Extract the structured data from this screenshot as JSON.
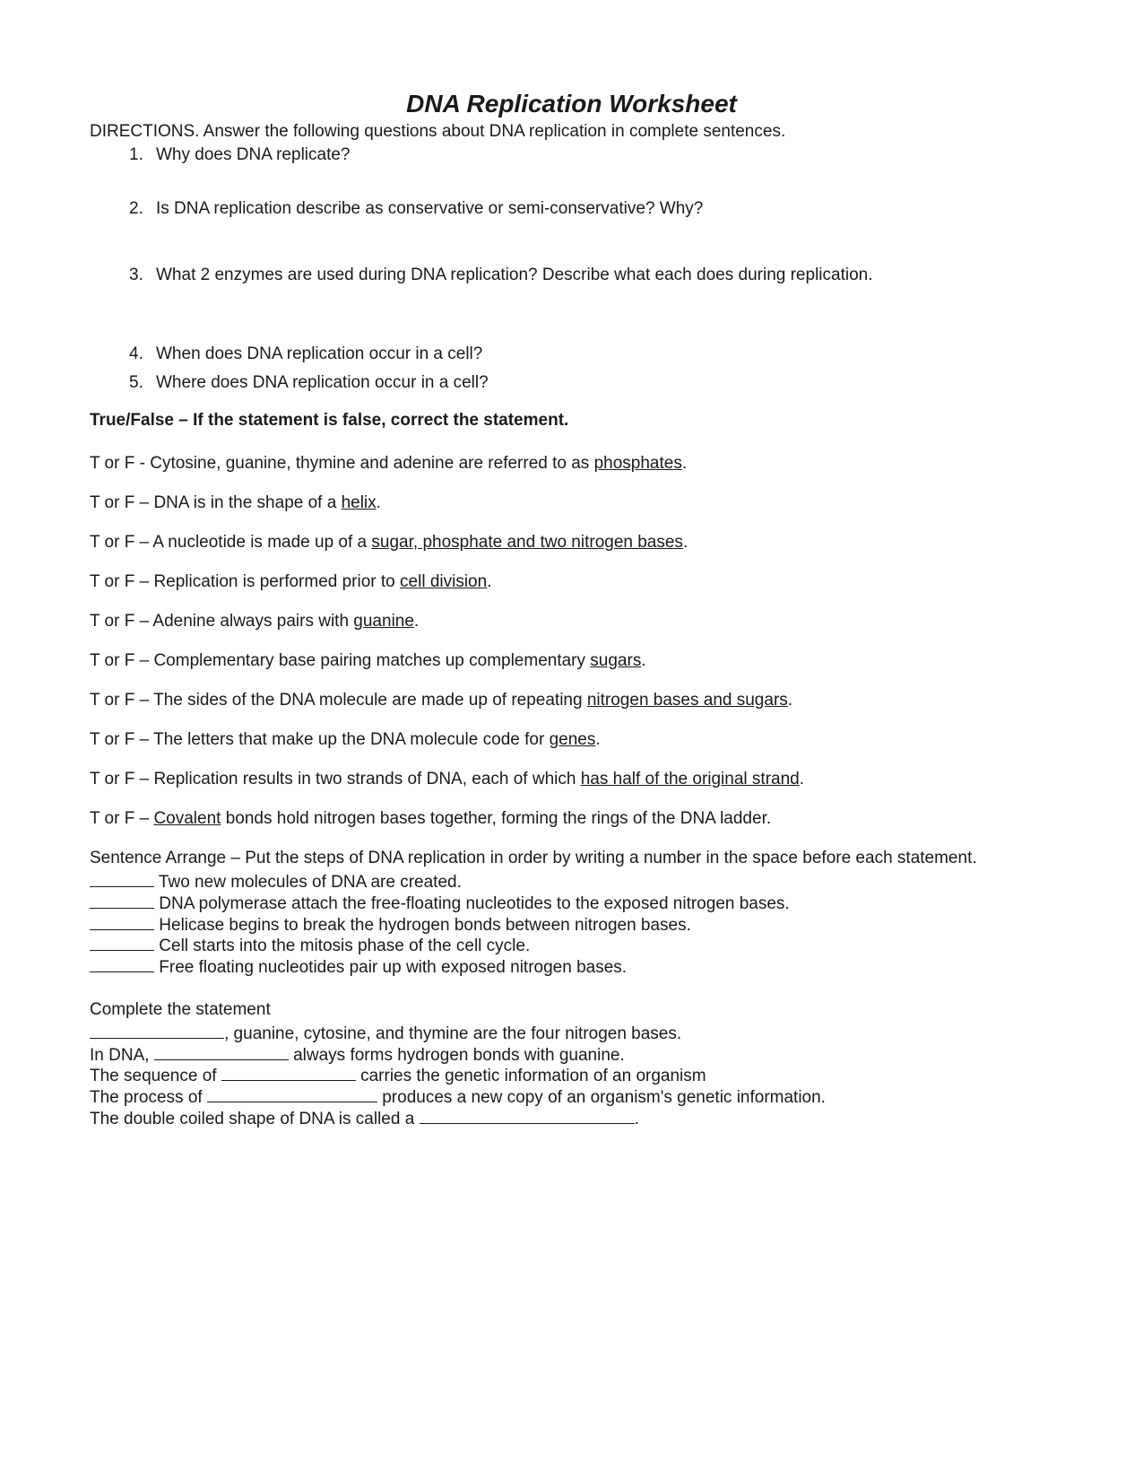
{
  "title": "DNA Replication Worksheet",
  "directions": "DIRECTIONS. Answer the following questions about DNA replication in complete sentences.",
  "questions": [
    {
      "num": "1.",
      "text": "Why does DNA replicate?"
    },
    {
      "num": "2.",
      "text": "Is DNA replication describe as conservative or semi-conservative? Why?"
    },
    {
      "num": "3.",
      "text": "What 2 enzymes are used during DNA replication? Describe what each does during replication."
    },
    {
      "num": "4.",
      "text": "When does DNA replication occur in a cell?"
    },
    {
      "num": "5.",
      "text": "Where does DNA replication occur in a cell?"
    }
  ],
  "tfHeading": "True/False – If the statement is false, correct the statement.",
  "tfPrefix": "T or  F",
  "tf": [
    {
      "sep": " - ",
      "pre": "Cytosine, guanine, thymine and adenine are referred to as ",
      "u": "phosphates",
      "post": "."
    },
    {
      "sep": " – ",
      "pre": "DNA is in the shape of a ",
      "u": "helix",
      "post": "."
    },
    {
      "sep": " – ",
      "pre": "A nucleotide is made up of a ",
      "u": "sugar, phosphate and two nitrogen bases",
      "post": "."
    },
    {
      "sep": " – ",
      "pre": "Replication is performed prior to ",
      "u": "cell division",
      "post": "."
    },
    {
      "sep": " – ",
      "pre": "Adenine always pairs with ",
      "u": "guanine",
      "post": "."
    },
    {
      "sep": " – ",
      "pre": "Complementary base pairing matches up complementary ",
      "u": "sugars",
      "post": "."
    },
    {
      "sep": " – ",
      "pre": "The sides of the DNA molecule are made up of repeating ",
      "u": "nitrogen bases and sugars",
      "post": "."
    },
    {
      "sep": " – ",
      "pre": "The letters that make up the DNA molecule code for ",
      "u": "genes",
      "post": "."
    },
    {
      "sep": " – ",
      "pre": "Replication results in two strands of DNA, each of which ",
      "u": "has half of the original strand",
      "post": "."
    },
    {
      "sep": " – ",
      "pre": "",
      "u": "Covalent",
      "post": " bonds hold nitrogen bases together, forming the rings of the DNA ladder."
    }
  ],
  "arrangeIntro": "Sentence Arrange – Put the steps of DNA replication in order by writing a number in the space before each statement.",
  "arrange": [
    "Two new molecules of DNA are created.",
    "DNA polymerase attach the free-floating nucleotides to the exposed nitrogen bases.",
    "Helicase begins to break the hydrogen bonds between nitrogen bases.",
    "Cell starts into the mitosis phase of the cell cycle.",
    "Free floating nucleotides pair up with exposed nitrogen bases."
  ],
  "completeHeading": "Complete the statement",
  "complete": [
    {
      "parts": [
        {
          "blank": "blank-long"
        },
        {
          "t": ", guanine, cytosine, and thymine are the four nitrogen bases."
        }
      ]
    },
    {
      "parts": [
        {
          "t": "In DNA, "
        },
        {
          "blank": "blank-long"
        },
        {
          "t": " always forms hydrogen bonds with guanine."
        }
      ]
    },
    {
      "parts": [
        {
          "t": "The sequence of "
        },
        {
          "blank": "blank-long"
        },
        {
          "t": " carries the genetic information of an organism"
        }
      ]
    },
    {
      "parts": [
        {
          "t": "The process of "
        },
        {
          "blank": "blank-xlong"
        },
        {
          "t": " produces a new copy of an organism's genetic information."
        }
      ]
    },
    {
      "parts": [
        {
          "t": "The double coiled shape of DNA is called a "
        },
        {
          "blank": "blank-xxlong"
        },
        {
          "t": "."
        }
      ]
    }
  ]
}
